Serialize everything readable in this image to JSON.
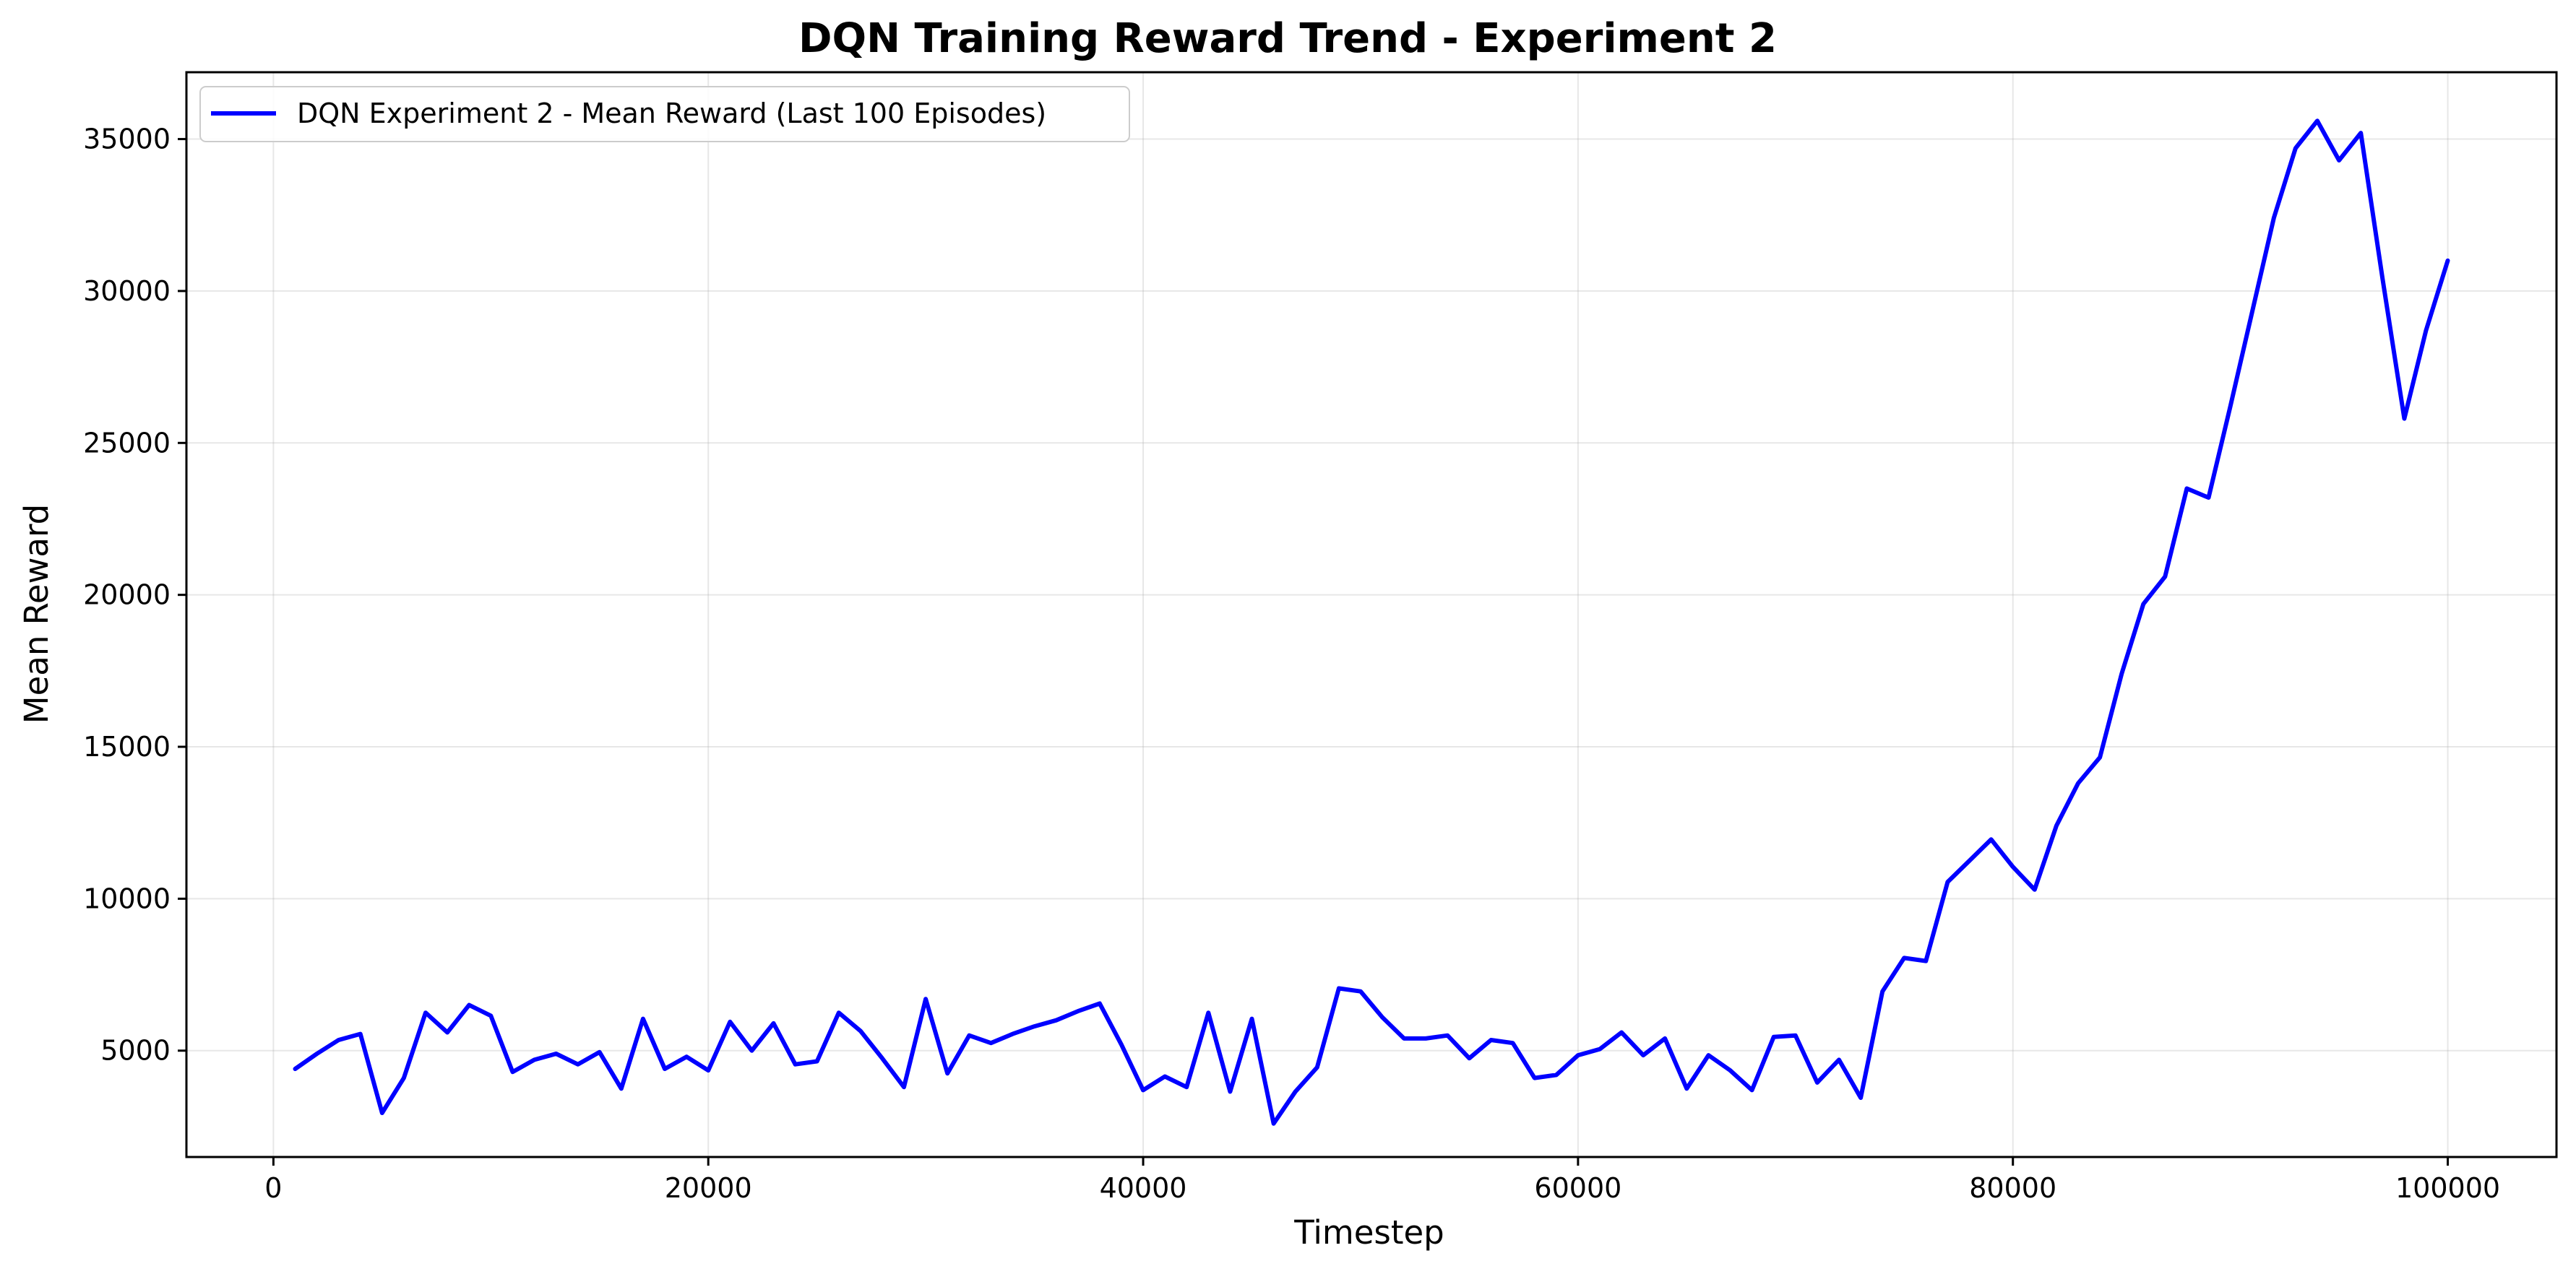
{
  "chart_data": {
    "type": "line",
    "title": "DQN Training Reward Trend - Experiment 2",
    "xlabel": "Timestep",
    "ylabel": "Mean Reward",
    "xlim": [
      -4000,
      105000
    ],
    "ylim": [
      1500,
      37200
    ],
    "xticks": [
      0,
      20000,
      40000,
      60000,
      80000,
      100000
    ],
    "yticks": [
      5000,
      10000,
      15000,
      20000,
      25000,
      30000,
      35000
    ],
    "grid": true,
    "legend_position": "top-left",
    "series": [
      {
        "name": "DQN Experiment 2 - Mean Reward (Last 100 Episodes)",
        "color": "#0000ff",
        "x": [
          1000,
          2000,
          3000,
          4000,
          5000,
          6000,
          7000,
          8000,
          9000,
          10000,
          11000,
          12000,
          13000,
          14000,
          15000,
          16000,
          17000,
          18000,
          19000,
          20000,
          21000,
          22000,
          23000,
          24000,
          25000,
          26000,
          27000,
          28000,
          29000,
          30000,
          31000,
          32000,
          33000,
          34000,
          35000,
          36000,
          37000,
          38000,
          39000,
          40000,
          41000,
          42000,
          43000,
          44000,
          45000,
          46000,
          47000,
          48000,
          49000,
          50000,
          51000,
          52000,
          53000,
          54000,
          55000,
          56000,
          57000,
          58000,
          59000,
          60000,
          61000,
          62000,
          63000,
          64000,
          65000,
          66000,
          67000,
          68000,
          69000,
          70000,
          71000,
          72000,
          73000,
          74000,
          75000,
          76000,
          77000,
          78000,
          79000,
          80000,
          81000,
          82000,
          83000,
          84000,
          85000,
          86000,
          87000,
          88000,
          89000,
          90000,
          91000,
          92000,
          93000,
          94000,
          95000,
          96000,
          97000,
          98000,
          99000,
          100000
        ],
        "y": [
          4400,
          4900,
          5350,
          5550,
          2950,
          4100,
          6250,
          5600,
          6500,
          6150,
          4300,
          4700,
          4900,
          4550,
          4950,
          3750,
          6050,
          4400,
          4800,
          4350,
          5950,
          5000,
          5900,
          4550,
          4650,
          6250,
          5650,
          4750,
          3800,
          6700,
          4250,
          5500,
          5250,
          5550,
          5800,
          6000,
          6300,
          6550,
          5200,
          3700,
          4150,
          3800,
          6250,
          3650,
          6050,
          2600,
          3650,
          4450,
          7050,
          6950,
          6100,
          5400,
          5400,
          5500,
          4750,
          5350,
          5250,
          4100,
          4200,
          4850,
          5050,
          5600,
          4850,
          5400,
          3750,
          4850,
          4350,
          3700,
          5450,
          5500,
          3950,
          4700,
          3450,
          6950,
          8050,
          7950,
          10550,
          11250,
          11950,
          11050,
          10300,
          12400,
          13800,
          14650,
          17400,
          19700,
          20600,
          23500,
          23200,
          26200,
          29300,
          32400,
          34700,
          35600,
          34300,
          35200,
          30400,
          25800,
          28700,
          31000
        ]
      }
    ]
  }
}
